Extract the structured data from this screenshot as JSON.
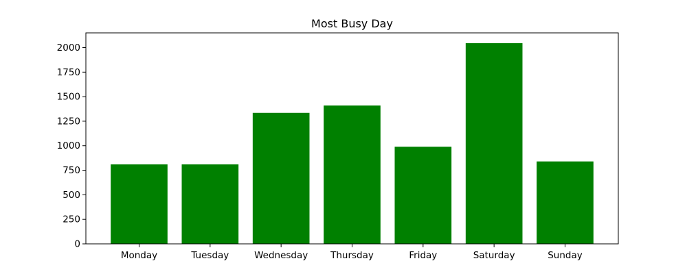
{
  "chart_data": {
    "type": "bar",
    "title": "Most Busy Day",
    "xlabel": "",
    "ylabel": "",
    "categories": [
      "Monday",
      "Tuesday",
      "Wednesday",
      "Thursday",
      "Friday",
      "Saturday",
      "Sunday"
    ],
    "values": [
      810,
      810,
      1335,
      1410,
      990,
      2045,
      840
    ],
    "ylim": [
      0,
      2150
    ],
    "yticks": [
      0,
      250,
      500,
      750,
      1000,
      1250,
      1500,
      1750,
      2000
    ],
    "grid": false,
    "legend": "none",
    "bar_color": "#008000",
    "axis_color": "#000000"
  }
}
